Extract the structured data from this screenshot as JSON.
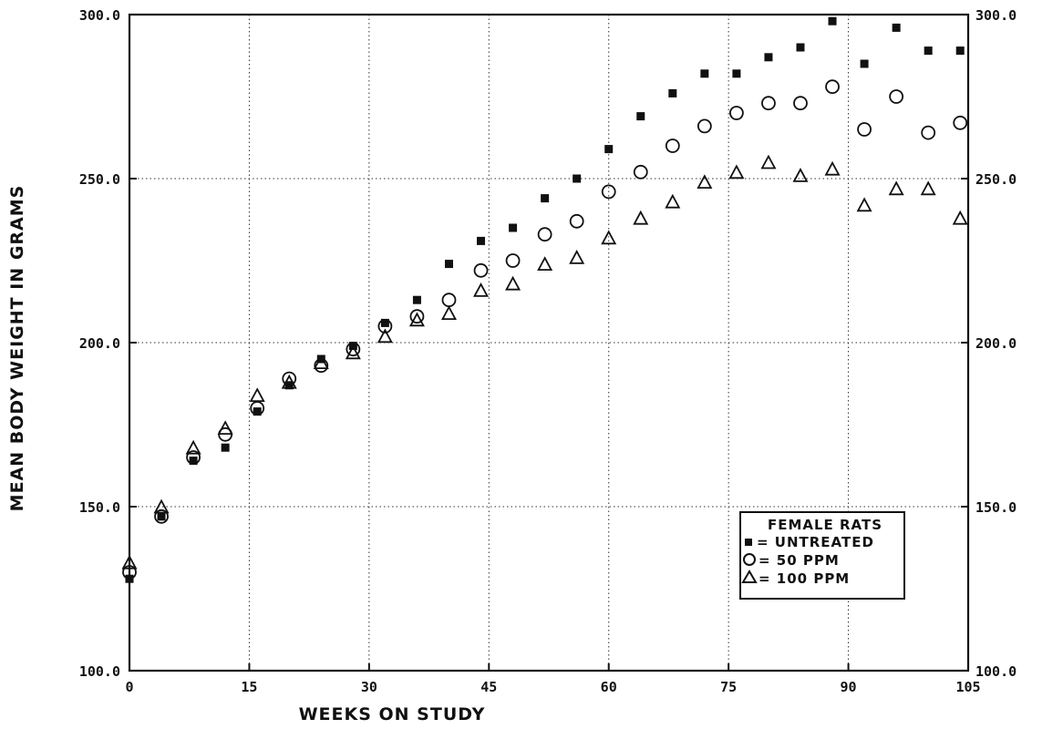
{
  "chart_data": {
    "type": "scatter",
    "title": "",
    "xlabel": "WEEKS ON STUDY",
    "ylabel": "MEAN BODY WEIGHT IN GRAMS",
    "xlim": [
      0,
      105
    ],
    "ylim": [
      100,
      300
    ],
    "x_ticks": [
      "0",
      "15",
      "30",
      "45",
      "60",
      "75",
      "90",
      "105"
    ],
    "y_ticks": [
      "100.0",
      "150.0",
      "200.0",
      "250.0",
      "300.0"
    ],
    "grid": true,
    "legend_position": "bottom-right",
    "legend": {
      "title": "FEMALE RATS",
      "entries": [
        "= UNTREATED",
        "= 50 PPM",
        "= 100 PPM"
      ]
    },
    "series": [
      {
        "name": "UNTREATED",
        "marker": "filled-square",
        "x": [
          0,
          4,
          8,
          12,
          16,
          20,
          24,
          28,
          32,
          36,
          40,
          44,
          48,
          52,
          56,
          60,
          64,
          68,
          72,
          76,
          80,
          84,
          88,
          92,
          96,
          100,
          104
        ],
        "y": [
          128,
          147,
          164,
          168,
          179,
          187,
          195,
          199,
          206,
          213,
          224,
          231,
          235,
          244,
          250,
          259,
          269,
          276,
          282,
          282,
          287,
          290,
          298,
          285,
          296,
          289,
          289
        ]
      },
      {
        "name": "50 PPM",
        "marker": "open-circle",
        "x": [
          0,
          4,
          8,
          12,
          16,
          20,
          24,
          28,
          32,
          36,
          40,
          44,
          48,
          52,
          56,
          60,
          64,
          68,
          72,
          76,
          80,
          84,
          88,
          92,
          96,
          100,
          104
        ],
        "y": [
          130,
          147,
          165,
          172,
          180,
          189,
          193,
          198,
          205,
          208,
          213,
          222,
          225,
          233,
          237,
          246,
          252,
          260,
          266,
          270,
          273,
          273,
          278,
          265,
          275,
          264,
          267
        ]
      },
      {
        "name": "100 PPM",
        "marker": "open-triangle",
        "x": [
          0,
          4,
          8,
          12,
          16,
          20,
          24,
          28,
          32,
          36,
          40,
          44,
          48,
          52,
          56,
          60,
          64,
          68,
          72,
          76,
          80,
          84,
          88,
          92,
          96,
          100,
          104
        ],
        "y": [
          133,
          150,
          168,
          174,
          184,
          188,
          194,
          197,
          202,
          207,
          209,
          216,
          218,
          224,
          226,
          232,
          238,
          243,
          249,
          252,
          255,
          251,
          253,
          242,
          247,
          247,
          238
        ]
      }
    ]
  }
}
